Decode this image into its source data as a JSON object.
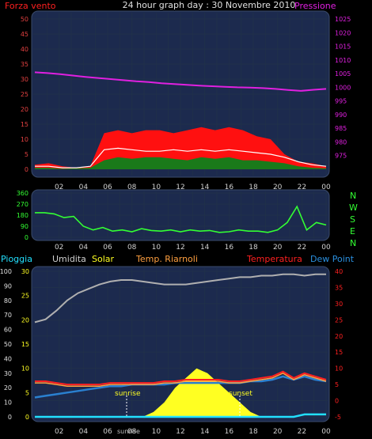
{
  "header": {
    "left_label": "Forza vento",
    "center_title": "24 hour graph day : 30 Novembre 2010",
    "right_label": "Pressione"
  },
  "legend_mid": {
    "pioggia": "Pioggia",
    "umidita": "Umidita",
    "solar": "Solar",
    "temp_riarnoli": "Temp. Riarnoli",
    "temperatura": "Temperatura",
    "dew_point": "Dew Point"
  },
  "compass": [
    "N",
    "W",
    "S",
    "E",
    "N"
  ],
  "annotations": {
    "sunrise": "sunrise",
    "sunset": "sunset"
  },
  "colors": {
    "panel_bg": "#1c2a4e",
    "grid": "#20304a",
    "wind_gust": "#ff1010",
    "wind_avg": "#1a7a1a",
    "wind_white": "#ffffff",
    "pressure": "#e020e0",
    "direction": "#33ff33",
    "humidity": "#b0b0b0",
    "solar": "#ffff22",
    "temperature": "#ff2020",
    "dew_point": "#2a80d0",
    "rain": "#22e0ff"
  },
  "chart_data": [
    {
      "type": "area",
      "x_ticks": [
        "02",
        "04",
        "06",
        "08",
        "10",
        "12",
        "14",
        "16",
        "18",
        "20",
        "22",
        "00"
      ],
      "ylim_left": [
        0,
        50
      ],
      "yticks_left": [
        0,
        5,
        10,
        15,
        20,
        25,
        30,
        35,
        40,
        45,
        50
      ],
      "ylim_right": [
        970,
        1025
      ],
      "yticks_right": [
        975,
        980,
        985,
        990,
        995,
        1000,
        1005,
        1010,
        1015,
        1020,
        1025
      ],
      "series": [
        {
          "name": "Forza vento",
          "values": [
            1.5,
            2,
            1,
            0.5,
            1,
            12,
            13,
            12,
            13,
            13,
            12,
            13,
            14,
            13,
            14,
            13,
            11,
            10,
            5,
            2.5,
            2,
            1
          ]
        },
        {
          "name": "Pressione",
          "values": [
            1005.5,
            1005.2,
            1004.8,
            1004.3,
            1003.8,
            1003.4,
            1003,
            1002.6,
            1002.2,
            1001.9,
            1001.5,
            1001.2,
            1000.9,
            1000.6,
            1000.4,
            1000.2,
            1000,
            999.9,
            999.7,
            999.4,
            999,
            998.7,
            999.1,
            999.4
          ]
        }
      ],
      "extra_series": [
        {
          "values": [
            0.5,
            0.5,
            0.2,
            0.3,
            0.5,
            3,
            4,
            3.5,
            4,
            4,
            3.5,
            3,
            4,
            3.5,
            4,
            3,
            3,
            2.5,
            2,
            1,
            0.5,
            0.3
          ]
        },
        {
          "values": [
            1,
            1,
            0.5,
            0.5,
            1,
            6.5,
            7,
            6.5,
            6,
            6,
            6.5,
            6,
            6.5,
            6,
            6.5,
            6,
            5.5,
            5,
            4,
            2.5,
            1.5,
            1
          ]
        }
      ]
    },
    {
      "type": "line",
      "x_ticks": [
        "02",
        "04",
        "06",
        "08",
        "10",
        "12",
        "14",
        "16",
        "18",
        "20",
        "22",
        "00"
      ],
      "ylim": [
        0,
        360
      ],
      "yticks": [
        0,
        90,
        180,
        270,
        360
      ],
      "series": [
        {
          "values": [
            200,
            200,
            190,
            160,
            170,
            90,
            60,
            80,
            50,
            60,
            45,
            70,
            55,
            50,
            60,
            45,
            60,
            50,
            55,
            40,
            45,
            60,
            50,
            50,
            40,
            60,
            120,
            250,
            60,
            120,
            100
          ]
        }
      ]
    },
    {
      "type": "line",
      "x_ticks": [
        "02",
        "04",
        "06",
        "08",
        "10",
        "12",
        "14",
        "16",
        "18",
        "20",
        "22",
        "00"
      ],
      "ylim_left": [
        0,
        100
      ],
      "yticks_left": [
        0,
        10,
        20,
        30,
        40,
        50,
        60,
        70,
        80,
        90,
        100
      ],
      "ylim_mid": [
        0,
        30
      ],
      "yticks_mid": [
        0,
        5,
        10,
        15,
        20,
        25,
        30
      ],
      "ylim_right": [
        -5,
        40
      ],
      "yticks_right": [
        -5,
        0,
        5,
        10,
        15,
        20,
        25,
        30,
        35,
        40
      ],
      "series": [
        {
          "name": "Umidita",
          "values": [
            65,
            67,
            73,
            80,
            85,
            88,
            91,
            93,
            94,
            94,
            93,
            92,
            91,
            91,
            91,
            92,
            93,
            94,
            95,
            96,
            96,
            97,
            97,
            98,
            98,
            97,
            98,
            98
          ]
        },
        {
          "name": "Temperatura",
          "values": [
            6,
            6,
            5.5,
            5,
            5,
            5,
            5,
            5.5,
            5.5,
            5.5,
            5.5,
            5.5,
            6,
            6,
            6.5,
            6.5,
            6.5,
            6.5,
            6,
            6,
            6.5,
            7,
            7.5,
            9,
            7,
            8.5,
            7.5,
            6.5
          ]
        },
        {
          "name": "Temp. Riarnoli",
          "values": [
            5.5,
            5.5,
            5,
            4.5,
            4.5,
            4.5,
            4.5,
            5,
            5,
            5,
            5,
            5,
            5.5,
            5.5,
            6,
            6,
            6,
            6,
            5.5,
            5.5,
            6,
            6.5,
            7,
            8.5,
            6.5,
            8,
            7,
            6
          ]
        },
        {
          "name": "Dew Point",
          "values": [
            1,
            1.5,
            2,
            2.5,
            3,
            3.5,
            4,
            4.5,
            4.5,
            5,
            5,
            5,
            5,
            5.5,
            5.5,
            5.5,
            5.5,
            5.5,
            5.5,
            5.5,
            6,
            6,
            6.5,
            7.5,
            6.5,
            7.5,
            6.5,
            6
          ]
        },
        {
          "name": "Solar",
          "values": [
            0,
            0,
            0,
            0,
            0,
            0,
            0,
            0,
            0,
            0,
            0,
            1,
            3,
            6,
            8,
            10,
            9,
            7,
            5,
            3,
            1,
            0,
            0,
            0,
            0,
            0,
            0,
            0
          ]
        },
        {
          "name": "Pioggia",
          "values": [
            0,
            0,
            0,
            0,
            0,
            0,
            0,
            0,
            0,
            0,
            0,
            0,
            0,
            0,
            0,
            0,
            0,
            0,
            0,
            0,
            0,
            0,
            0,
            0,
            0,
            0.5,
            0.5,
            0.5
          ]
        }
      ]
    }
  ]
}
